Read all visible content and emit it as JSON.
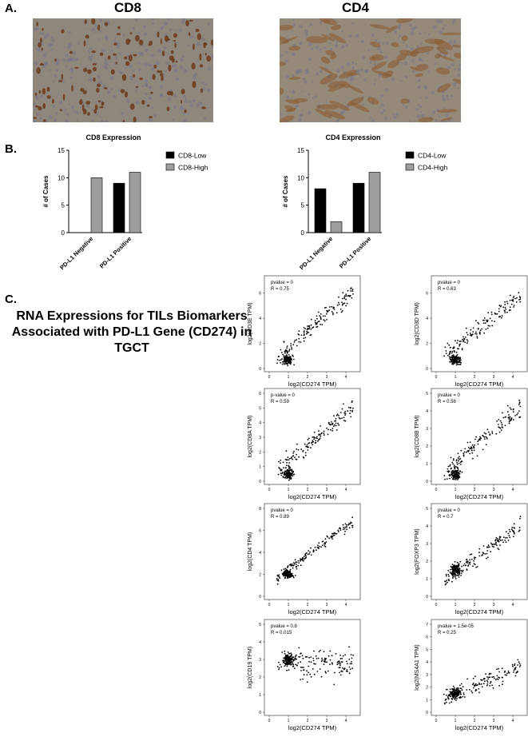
{
  "panels": {
    "a_label": "A.",
    "b_label": "B.",
    "c_label": "C.",
    "cd8_title": "CD8",
    "cd4_title": "CD4",
    "c_title_line1": "RNA Expressions for TILs Biomarkers",
    "c_title_line2": "Associated with PD-L1 Gene (CD274) in",
    "c_title_line3": "TGCT"
  },
  "micrographs": {
    "cd8": {
      "base_color": "#8f877c",
      "stain_color": "#6b3a1c",
      "stain": "dense-brown-cells"
    },
    "cd4": {
      "base_color": "#958a7a",
      "stain_color": "#8a5a2c",
      "stain": "diffuse-brown-bands"
    }
  },
  "chart_data": [
    {
      "type": "bar",
      "title": "CD8 Expression",
      "ylabel": "# of Cases",
      "categories": [
        "PD-L1 Negative",
        "PD-L1 Positive"
      ],
      "ylim": [
        0,
        15
      ],
      "yticks": [
        "0",
        "5",
        "10",
        "15"
      ],
      "series": [
        {
          "name": "CD8-Low",
          "color": "#000000",
          "values": [
            0,
            9
          ]
        },
        {
          "name": "CD8-High",
          "color": "#9e9e9e",
          "values": [
            10,
            11
          ]
        }
      ],
      "legend": "top-right"
    },
    {
      "type": "bar",
      "title": "CD4 Expression",
      "ylabel": "# of Cases",
      "categories": [
        "PD-L1 Negative",
        "PD-L1 Positive"
      ],
      "ylim": [
        0,
        15
      ],
      "yticks": [
        "0",
        "5",
        "10",
        "15"
      ],
      "series": [
        {
          "name": "CD4-Low",
          "color": "#000000",
          "values": [
            8,
            9
          ]
        },
        {
          "name": "CD4-High",
          "color": "#9e9e9e",
          "values": [
            2,
            11
          ]
        }
      ],
      "legend": "top-right"
    },
    {
      "type": "scatter",
      "xlabel": "log2(CD274 TPM)",
      "ylabel": "log2(CD3E TPM)",
      "pvalue": "pvalue = 0",
      "r": "R = 0.75",
      "xlim": [
        0,
        4.5
      ],
      "ylim": [
        0,
        7
      ],
      "xticks": [
        "0",
        "1",
        "2",
        "3",
        "4"
      ],
      "yticks": [
        "0",
        "2",
        "4",
        "6"
      ],
      "pattern": {
        "cluster": [
          1.0,
          0.7
        ],
        "slope": 1.3,
        "intercept": 1.0,
        "noise": 0.9
      }
    },
    {
      "type": "scatter",
      "xlabel": "log2(CD274 TPM)",
      "ylabel": "log2(CD3D TPM)",
      "pvalue": "pvalue = 0",
      "r": "R = 0.63",
      "xlim": [
        0,
        4.5
      ],
      "ylim": [
        0,
        7
      ],
      "xticks": [
        "0",
        "1",
        "2",
        "3",
        "4"
      ],
      "yticks": [
        "0",
        "2",
        "4",
        "6"
      ],
      "pattern": {
        "cluster": [
          1.0,
          0.7
        ],
        "slope": 1.2,
        "intercept": 1.1,
        "noise": 1.0
      }
    },
    {
      "type": "scatter",
      "xlabel": "log2(CD274 TPM)",
      "ylabel": "log2(CD8A TPM)",
      "pvalue": "p-value = 0",
      "r": "R = 0.59",
      "xlim": [
        0,
        4.5
      ],
      "ylim": [
        0,
        6
      ],
      "xticks": [
        "0",
        "1",
        "2",
        "3",
        "4"
      ],
      "yticks": [
        "0",
        "1",
        "2",
        "3",
        "4",
        "5",
        "6"
      ],
      "pattern": {
        "cluster": [
          1.0,
          0.5
        ],
        "slope": 1.1,
        "intercept": 0.8,
        "noise": 0.9
      }
    },
    {
      "type": "scatter",
      "xlabel": "log2(CD274 TPM)",
      "ylabel": "log2(CD8B TPM)",
      "pvalue": "pvalue = 0",
      "r": "R = 0.56",
      "xlim": [
        0,
        4.5
      ],
      "ylim": [
        0,
        5
      ],
      "xticks": [
        "0",
        "1",
        "2",
        "3",
        "4"
      ],
      "yticks": [
        "0",
        "1",
        "2",
        "3",
        "4",
        "5"
      ],
      "pattern": {
        "cluster": [
          1.0,
          0.4
        ],
        "slope": 0.9,
        "intercept": 0.6,
        "noise": 0.8
      }
    },
    {
      "type": "scatter",
      "xlabel": "log2(CD274 TPM)",
      "ylabel": "log2(CD4 TPM)",
      "pvalue": "pvalue = 0",
      "r": "R = 0.89",
      "xlim": [
        0,
        4.5
      ],
      "ylim": [
        0,
        8
      ],
      "xticks": [
        "0",
        "1",
        "2",
        "3",
        "4"
      ],
      "yticks": [
        "0",
        "2",
        "4",
        "6",
        "8"
      ],
      "pattern": {
        "cluster": [
          1.0,
          2.0
        ],
        "slope": 1.3,
        "intercept": 1.8,
        "noise": 0.6
      }
    },
    {
      "type": "scatter",
      "xlabel": "log2(CD274 TPM)",
      "ylabel": "log2(FOXP3 TPM)",
      "pvalue": "pvalue = 0",
      "r": "R = 0.7",
      "xlim": [
        0,
        4.5
      ],
      "ylim": [
        0,
        5
      ],
      "xticks": [
        "0",
        "1",
        "2",
        "3",
        "4"
      ],
      "yticks": [
        "0",
        "1",
        "2",
        "3",
        "4",
        "5"
      ],
      "pattern": {
        "cluster": [
          1.0,
          1.5
        ],
        "slope": 0.8,
        "intercept": 0.9,
        "noise": 0.6
      }
    },
    {
      "type": "scatter",
      "xlabel": "log2(CD274 TPM)",
      "ylabel": "log2(CD19 TPM)",
      "pvalue": "pvalue = 0.8",
      "r": "R = 0.015",
      "xlim": [
        0,
        4.5
      ],
      "ylim": [
        0,
        5
      ],
      "xticks": [
        "0",
        "1",
        "2",
        "3",
        "4"
      ],
      "yticks": [
        "0",
        "1",
        "2",
        "3",
        "4",
        "5"
      ],
      "pattern": {
        "cluster": [
          1.0,
          3.0
        ],
        "slope": 0.0,
        "intercept": 2.8,
        "noise": 1.2
      }
    },
    {
      "type": "scatter",
      "xlabel": "log2(CD274 TPM)",
      "ylabel": "log2(MS4A1 TPM)",
      "pvalue": "pvalue = 1.5e-05",
      "r": "R = 0.25",
      "xlim": [
        0,
        4.5
      ],
      "ylim": [
        0,
        7
      ],
      "xticks": [
        "0",
        "1",
        "2",
        "3",
        "4"
      ],
      "yticks": [
        "0",
        "1",
        "2",
        "3",
        "4",
        "5",
        "6",
        "7"
      ],
      "pattern": {
        "cluster": [
          1.0,
          1.5
        ],
        "slope": 0.6,
        "intercept": 1.2,
        "noise": 1.0
      }
    }
  ]
}
